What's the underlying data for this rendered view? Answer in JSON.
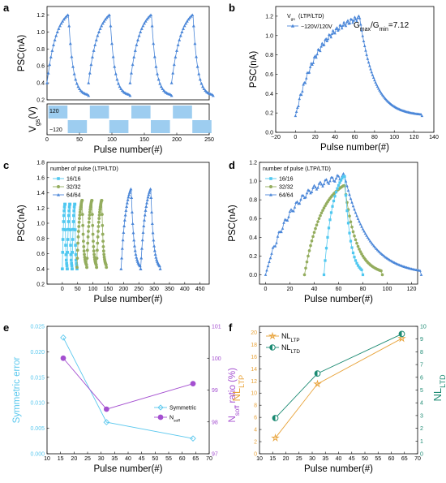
{
  "colors": {
    "ltp_blue": "#4a86d8",
    "seg_16": "#50c8f0",
    "seg_32": "#94ad5e",
    "seg_64": "#4a86d8",
    "cyan": "#5bc8ee",
    "purple": "#a44fd0",
    "orange": "#e8a33a",
    "teal": "#1b8a72",
    "pulse_block": "#9dcdf0"
  },
  "panels": {
    "a": {
      "letter": "a"
    },
    "b": {
      "letter": "b"
    },
    "c": {
      "letter": "c"
    },
    "d": {
      "letter": "d"
    },
    "e": {
      "letter": "e"
    },
    "f": {
      "letter": "f"
    }
  },
  "chart_data": [
    {
      "id": "a",
      "type": "line",
      "ylabel": "PSC(nA)",
      "xlabel": "Pulse number(#)",
      "xlim": [
        0,
        250
      ],
      "ylim": [
        0.2,
        1.3
      ],
      "xticks": [
        "0",
        "50",
        "100",
        "150",
        "200",
        "250"
      ],
      "yticks": [
        "0.2",
        "0.4",
        "0.6",
        "0.8",
        "1.0",
        "1.2"
      ],
      "cycles": 4,
      "cycle_length": 64,
      "ltp_start": 0.4,
      "ltp_peak": 1.2,
      "ltd_end": 0.25,
      "sub_panel": {
        "ylabel": "Vgs(V)",
        "top_label": "120",
        "bottom_label": "−120"
      }
    },
    {
      "id": "b",
      "type": "line",
      "ylabel": "PSC(nA)",
      "xlabel": "Pulse number(#)",
      "xlim": [
        -20,
        140
      ],
      "ylim": [
        0.0,
        1.3
      ],
      "xticks": [
        "−20",
        "0",
        "20",
        "40",
        "60",
        "80",
        "100",
        "120",
        "140"
      ],
      "yticks": [
        "0.0",
        "0.2",
        "0.4",
        "0.6",
        "0.8",
        "1.0",
        "1.2"
      ],
      "legend_title": "Vgs (LTP/LTD)",
      "legend_entry": "−120V/120V",
      "annotation": "Gmax/Gmin=7.12",
      "series": [
        {
          "name": "−120V/120V",
          "ltp_start": 0.17,
          "ltp_peak": 1.18,
          "peak_x": 64,
          "ltd_end": 0.17,
          "end_x": 128
        }
      ]
    },
    {
      "id": "c",
      "type": "line",
      "ylabel": "PSC(nA)",
      "xlabel": "Pulse number(#)",
      "xlim": [
        -50,
        480
      ],
      "ylim": [
        0.2,
        1.8
      ],
      "xticks": [
        "0",
        "50",
        "100",
        "150",
        "200",
        "250",
        "300",
        "350",
        "400",
        "450"
      ],
      "yticks": [
        "0.2",
        "0.4",
        "0.6",
        "0.8",
        "1.0",
        "1.2",
        "1.4",
        "1.6",
        "1.8"
      ],
      "legend_title": "number of pulse (LTP/LTD)",
      "series": [
        {
          "name": "16/16",
          "cycle_length": 16,
          "start": 0,
          "cycles": 3,
          "low": 0.4,
          "high": 1.25
        },
        {
          "name": "32/32",
          "cycle_length": 32,
          "start": 48,
          "cycles": 3,
          "low": 0.42,
          "high": 1.3
        },
        {
          "name": "64/64",
          "cycle_length": 64,
          "start": 192,
          "cycles": 2,
          "low": 0.4,
          "high": 1.45
        }
      ]
    },
    {
      "id": "d",
      "type": "line",
      "ylabel": "PSC(nA)",
      "xlabel": "Pulse number(#)",
      "xlim": [
        -5,
        125
      ],
      "ylim": [
        -0.1,
        1.2
      ],
      "xticks": [
        "0",
        "20",
        "40",
        "60",
        "80",
        "100",
        "120"
      ],
      "yticks": [
        "0.0",
        "0.2",
        "0.4",
        "0.6",
        "0.8",
        "1.0",
        "1.2"
      ],
      "legend_title": "number of pulse (LTP/LTD)",
      "series": [
        {
          "name": "16/16",
          "ltp_start_x": 48,
          "peak_x": 64,
          "end_x": 80,
          "low": 0.0,
          "high": 1.05
        },
        {
          "name": "32/32",
          "ltp_start_x": 32,
          "peak_x": 64,
          "end_x": 96,
          "low": 0.0,
          "high": 0.95
        },
        {
          "name": "64/64",
          "ltp_start_x": 0,
          "peak_x": 64,
          "end_x": 128,
          "low": 0.0,
          "high": 1.05
        }
      ]
    },
    {
      "id": "e",
      "type": "line",
      "ylabel": "Symmetric error",
      "ylabel_right": "Nsoff ratio (%)",
      "xlabel": "Pulse number(#)",
      "x": [
        16,
        32,
        64
      ],
      "xlim": [
        10,
        70
      ],
      "ylim": [
        0.0,
        0.025
      ],
      "ylim_right": [
        97,
        101
      ],
      "xticks": [
        "10",
        "15",
        "20",
        "25",
        "30",
        "35",
        "40",
        "45",
        "50",
        "55",
        "60",
        "65",
        "70"
      ],
      "yticks": [
        "0.000",
        "0.005",
        "0.010",
        "0.015",
        "0.020",
        "0.025"
      ],
      "yticks_right": [
        "97",
        "98",
        "99",
        "100",
        "101"
      ],
      "series": [
        {
          "name": "Symmetric",
          "values": [
            0.0228,
            0.0062,
            0.003
          ],
          "axis": "left"
        },
        {
          "name": "Nsoff",
          "values": [
            100.0,
            98.4,
            99.2
          ],
          "axis": "right"
        }
      ]
    },
    {
      "id": "f",
      "type": "line",
      "ylabel": "NL LTP",
      "ylabel_right": "NL LTD",
      "xlabel": "Pulse number(#)",
      "x": [
        16,
        32,
        64
      ],
      "xlim": [
        10,
        70
      ],
      "ylim": [
        0,
        21
      ],
      "ylim_right": [
        0,
        10
      ],
      "xticks": [
        "10",
        "15",
        "20",
        "25",
        "30",
        "35",
        "40",
        "45",
        "50",
        "55",
        "60",
        "65",
        "70"
      ],
      "yticks": [
        "0",
        "2",
        "4",
        "6",
        "8",
        "10",
        "12",
        "14",
        "16",
        "18",
        "20"
      ],
      "yticks_right": [
        "0",
        "1",
        "2",
        "3",
        "4",
        "5",
        "6",
        "7",
        "8",
        "9",
        "10"
      ],
      "series": [
        {
          "name": "NL LTP",
          "values": [
            2.6,
            11.5,
            19.0
          ],
          "axis": "left"
        },
        {
          "name": "NL LTD",
          "values": [
            2.8,
            6.3,
            9.4
          ],
          "axis": "right"
        }
      ]
    }
  ]
}
